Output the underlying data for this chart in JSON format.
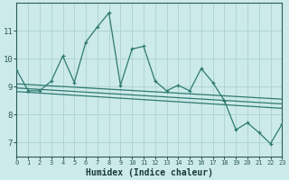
{
  "title": "",
  "xlabel": "Humidex (Indice chaleur)",
  "ylabel": "",
  "bg_color": "#cceaea",
  "plot_bg_color": "#cceaea",
  "line_color": "#2d7a6e",
  "grid_color": "#b0d4d4",
  "tick_color": "#2d5a5a",
  "label_color": "#1a3a3a",
  "x_values": [
    0,
    1,
    2,
    3,
    4,
    5,
    6,
    7,
    8,
    9,
    10,
    11,
    12,
    13,
    14,
    15,
    16,
    17,
    18,
    19,
    20,
    21,
    22,
    23
  ],
  "y_main": [
    9.6,
    8.85,
    8.85,
    9.2,
    10.1,
    9.15,
    10.6,
    11.15,
    11.65,
    9.05,
    10.35,
    10.45,
    9.2,
    8.85,
    9.05,
    8.85,
    9.65,
    9.15,
    8.5,
    7.45,
    7.7,
    7.35,
    6.95,
    7.65
  ],
  "ylim": [
    6.5,
    12.0
  ],
  "xlim": [
    0,
    23
  ],
  "yticks": [
    7,
    8,
    9,
    10,
    11
  ],
  "xticks": [
    0,
    1,
    2,
    3,
    4,
    5,
    6,
    7,
    8,
    9,
    10,
    11,
    12,
    13,
    14,
    15,
    16,
    17,
    18,
    19,
    20,
    21,
    22,
    23
  ],
  "trend_start": 0,
  "trend_end": 23,
  "trend_lines": [
    [
      9.1,
      8.55
    ],
    [
      8.95,
      8.38
    ],
    [
      8.82,
      8.22
    ]
  ]
}
